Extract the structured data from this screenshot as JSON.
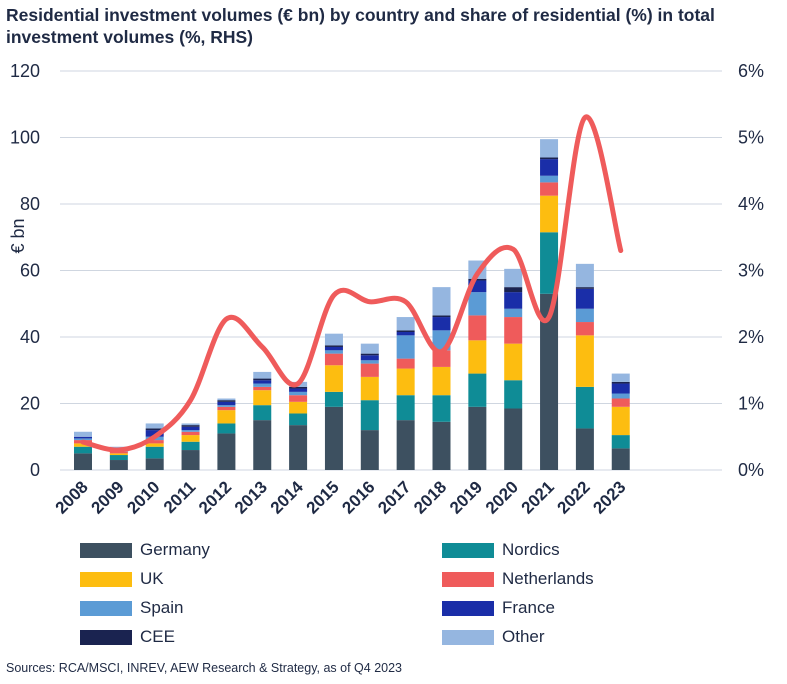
{
  "title": "Residential investment volumes (€ bn) by country and share of residential (%) in total investment volumes (%, RHS)",
  "source": "Sources: RCA/MSCI, INREV, AEW Research & Strategy, as of Q4 2023",
  "colors": {
    "Germany": "#3d5060",
    "Nordics": "#0f8c96",
    "UK": "#fdbd10",
    "Netherlands": "#ef5b5b",
    "Spain": "#5b9bd5",
    "France": "#1a2ea8",
    "CEE": "#1a2350",
    "Other": "#95b6e0",
    "line": "#ef5b5b",
    "grid": "#cfd6e0",
    "text": "#1f2a44"
  },
  "chart_data": {
    "type": "bar",
    "stacked": true,
    "title": "Residential investment volumes (€ bn) by country and share of residential (%) in total investment volumes (%, RHS)",
    "ylabel": "€ bn",
    "ylim": [
      0,
      120
    ],
    "yticks": [
      "0",
      "20",
      "40",
      "60",
      "80",
      "100",
      "120"
    ],
    "y2lim": [
      0,
      6
    ],
    "y2ticks": [
      "0%",
      "1%",
      "2%",
      "3%",
      "4%",
      "5%",
      "6%"
    ],
    "grid": true,
    "legend_position": "bottom",
    "categories": [
      "2008",
      "2009",
      "2010",
      "2011",
      "2012",
      "2013",
      "2014",
      "2015",
      "2016",
      "2017",
      "2018",
      "2019",
      "2020",
      "2021",
      "2022",
      "2023"
    ],
    "series": [
      {
        "name": "Germany",
        "values": [
          5,
          3,
          3.5,
          6,
          11,
          15,
          13.5,
          19,
          12,
          15,
          14.5,
          19,
          18.5,
          53,
          12.5,
          6.5
        ]
      },
      {
        "name": "Nordics",
        "values": [
          2,
          1.5,
          3.5,
          2.5,
          3,
          4.5,
          3.5,
          4.5,
          9,
          7.5,
          8,
          10,
          8.5,
          18.5,
          12.5,
          4
        ]
      },
      {
        "name": "UK",
        "values": [
          1,
          0.5,
          1,
          2,
          4,
          4.5,
          3.5,
          8,
          7,
          8,
          8.5,
          10,
          11,
          11,
          15.5,
          8.5
        ]
      },
      {
        "name": "Netherlands",
        "values": [
          1,
          0.5,
          1,
          1,
          1,
          1,
          2,
          3.5,
          4,
          3,
          5,
          7.5,
          8,
          4,
          4,
          2.5
        ]
      },
      {
        "name": "Spain",
        "values": [
          0.5,
          0.5,
          1,
          0.5,
          0.5,
          1,
          1,
          1,
          1,
          7,
          6,
          7,
          2.5,
          2,
          4,
          1.5
        ]
      },
      {
        "name": "France",
        "values": [
          0.5,
          0.5,
          2,
          1,
          1,
          1,
          1,
          1,
          1.5,
          1,
          4,
          3.5,
          5,
          5,
          6,
          3
        ]
      },
      {
        "name": "CEE",
        "values": [
          0,
          0,
          0.5,
          0.5,
          0.5,
          0.5,
          0.5,
          0.5,
          0.5,
          0.5,
          0.5,
          0.5,
          1.5,
          0.5,
          0.5,
          0.5
        ]
      },
      {
        "name": "Other",
        "values": [
          1.5,
          0.5,
          1.5,
          0.5,
          0.5,
          2,
          1.5,
          3.5,
          3,
          4,
          8.5,
          5.5,
          5.5,
          5.5,
          7,
          2.5
        ]
      }
    ],
    "line": {
      "axis": "right",
      "values": [
        0.42,
        0.3,
        0.5,
        1.05,
        2.27,
        1.85,
        1.3,
        2.63,
        2.53,
        2.53,
        1.78,
        2.95,
        3.32,
        2.3,
        5.3,
        3.3
      ]
    }
  }
}
